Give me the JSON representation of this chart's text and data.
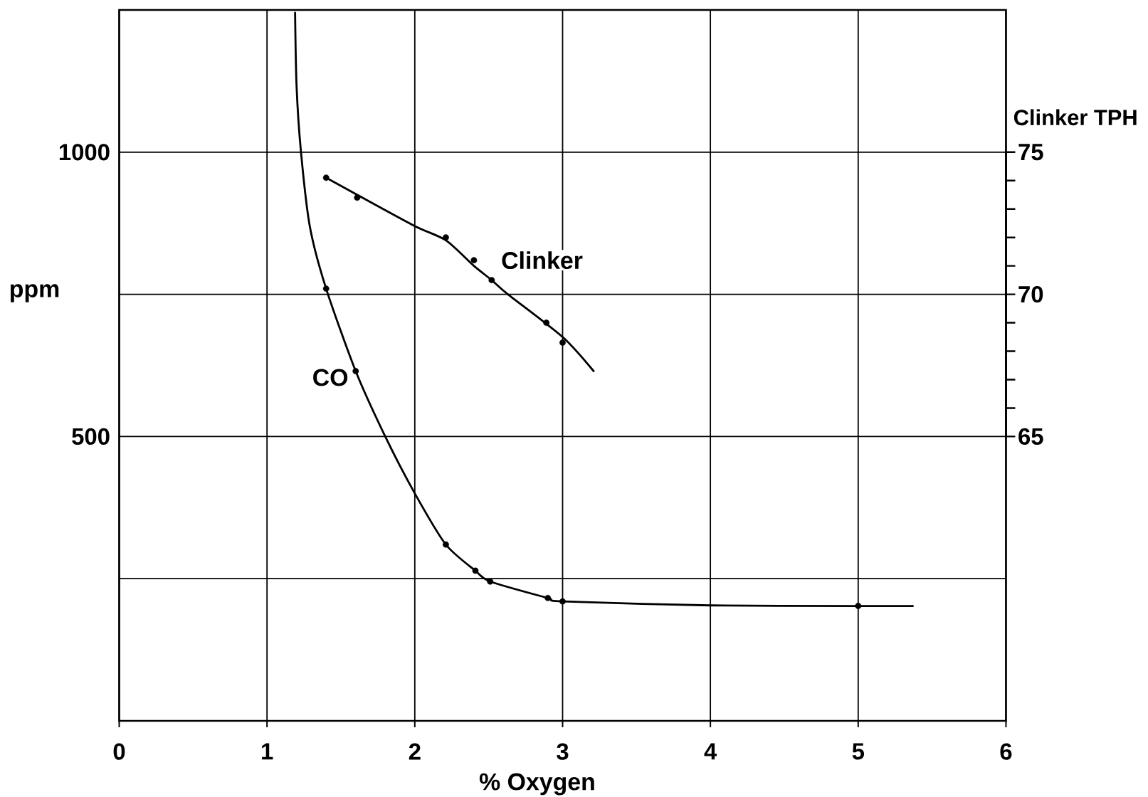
{
  "chart_data": {
    "type": "scatter",
    "xlabel": "% Oxygen",
    "ylabel": "ppm",
    "y2label": "Clinker TPH",
    "xlim": [
      0,
      6
    ],
    "xticks": [
      0,
      1,
      2,
      3,
      4,
      5,
      6
    ],
    "ylim": [
      0,
      1250
    ],
    "yticks": [
      {
        "value": 250,
        "label": null
      },
      500,
      {
        "value": 750,
        "label": null
      },
      1000
    ],
    "y2lim": [
      55,
      80
    ],
    "y2ticks": [
      65,
      {
        "value": 66,
        "label": null
      },
      {
        "value": 67,
        "label": null
      },
      {
        "value": 68,
        "label": null
      },
      {
        "value": 69,
        "label": null
      },
      70,
      {
        "value": 71,
        "label": null
      },
      {
        "value": 72,
        "label": null
      },
      {
        "value": 73,
        "label": null
      },
      {
        "value": 74,
        "label": null
      },
      75
    ],
    "grid": true,
    "marker": "circle",
    "line_style": "solid",
    "series": [
      {
        "name": "CO",
        "color": "#000000",
        "x": [
          1.4,
          1.6,
          2.21,
          2.41,
          2.51,
          2.9,
          3.0,
          5.0
        ],
        "values": [
          760,
          615,
          310,
          264,
          245,
          216,
          210,
          202
        ]
      },
      {
        "type": "line",
        "marker": "none",
        "color": "#000000",
        "x": [
          1.19,
          1.2,
          1.23,
          1.29,
          1.4,
          1.6,
          1.8,
          2.0,
          2.21,
          2.41,
          2.51,
          2.9,
          3.0,
          4.0,
          5.0,
          5.37
        ],
        "values": [
          1245,
          1116,
          1000,
          869,
          760,
          615,
          500,
          400,
          310,
          264,
          245,
          216,
          210,
          203,
          202,
          202
        ]
      },
      {
        "name": "Clinker",
        "axis": "y2",
        "color": "#000000",
        "x": [
          1.4,
          1.61,
          2.21,
          2.4,
          2.52,
          2.89,
          3.0
        ],
        "values": [
          74.1,
          73.4,
          72.0,
          71.2,
          70.5,
          69.0,
          68.3
        ]
      },
      {
        "type": "line",
        "marker": "none",
        "axis": "y2",
        "color": "#000000",
        "x": [
          1.4,
          1.61,
          2.0,
          2.21,
          2.4,
          2.52,
          2.63,
          3.0,
          3.21
        ],
        "values": [
          74.1,
          73.5,
          72.4,
          71.9,
          71.0,
          70.5,
          70.0,
          68.5,
          67.3
        ]
      }
    ]
  }
}
